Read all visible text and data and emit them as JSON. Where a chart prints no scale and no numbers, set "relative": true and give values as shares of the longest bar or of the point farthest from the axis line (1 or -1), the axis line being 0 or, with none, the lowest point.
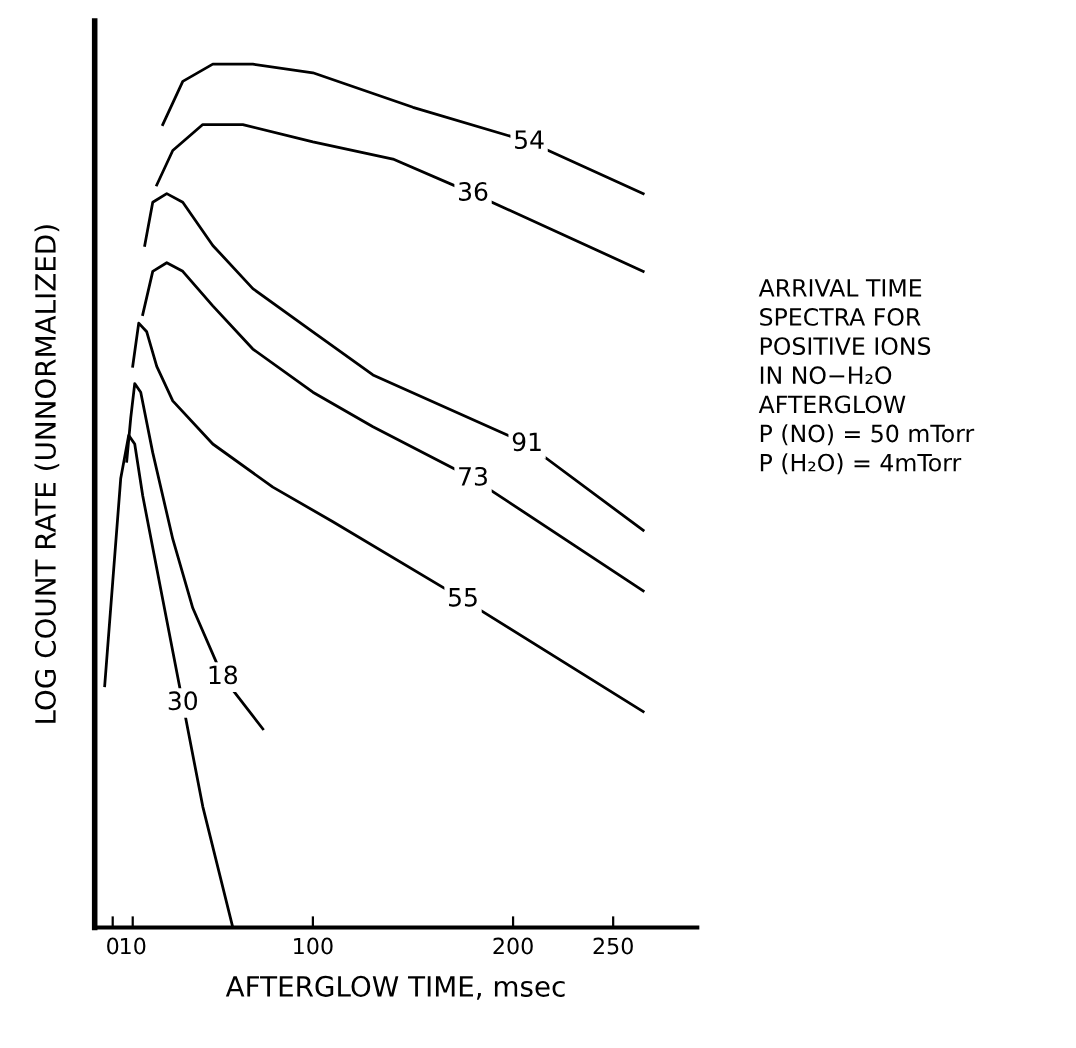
{
  "chart_data": {
    "type": "line",
    "relative": true,
    "xlabel": "AFTERGLOW TIME, msec",
    "ylabel": "LOG COUNT RATE (UNNORMALIZED)",
    "xlim": [
      -9,
      292
    ],
    "xticks": [
      0,
      10,
      100,
      200,
      250
    ],
    "tick_labels": "x",
    "annotations": [
      "ARRIVAL TIME\nSPECTRA FOR\nPOSITIVE IONS\nIN NO−H₂O\nAFTERGLOW\nP (NO) = 50 mTorr\nP (H₂O) = 4mTorr"
    ],
    "series": [
      {
        "name": "54",
        "color": "#000000",
        "x": [
          25,
          35,
          50,
          70,
          100,
          150,
          208,
          265
        ],
        "values": [
          0.93,
          0.98,
          1.0,
          1.0,
          0.99,
          0.95,
          0.91,
          0.85
        ]
      },
      {
        "name": "36",
        "color": "#000000",
        "x": [
          22,
          30,
          45,
          65,
          100,
          140,
          180,
          265
        ],
        "values": [
          0.86,
          0.9,
          0.93,
          0.93,
          0.91,
          0.89,
          0.85,
          0.76
        ]
      },
      {
        "name": "91",
        "color": "#000000",
        "x": [
          16,
          20,
          27,
          35,
          50,
          70,
          100,
          130,
          207,
          265
        ],
        "values": [
          0.79,
          0.84,
          0.85,
          0.84,
          0.79,
          0.74,
          0.69,
          0.64,
          0.56,
          0.46
        ]
      },
      {
        "name": "73",
        "color": "#000000",
        "x": [
          15,
          20,
          27,
          35,
          50,
          70,
          100,
          130,
          180,
          265
        ],
        "values": [
          0.71,
          0.76,
          0.77,
          0.76,
          0.72,
          0.67,
          0.62,
          0.58,
          0.52,
          0.39
        ]
      },
      {
        "name": "55",
        "color": "#000000",
        "x": [
          10,
          13,
          17,
          22,
          30,
          50,
          80,
          110,
          175,
          265
        ],
        "values": [
          0.65,
          0.7,
          0.69,
          0.65,
          0.61,
          0.56,
          0.51,
          0.47,
          0.38,
          0.25
        ]
      },
      {
        "name": "18",
        "color": "#000000",
        "x": [
          7,
          9,
          11,
          14,
          20,
          30,
          40,
          55,
          75
        ],
        "values": [
          0.54,
          0.59,
          0.63,
          0.62,
          0.55,
          0.45,
          0.37,
          0.29,
          0.23
        ]
      },
      {
        "name": "30",
        "color": "#000000",
        "x": [
          -4,
          0,
          4,
          8,
          11,
          15,
          25,
          35,
          45,
          60
        ],
        "values": [
          0.28,
          0.4,
          0.52,
          0.57,
          0.56,
          0.5,
          0.38,
          0.26,
          0.14,
          0.0
        ]
      }
    ]
  }
}
